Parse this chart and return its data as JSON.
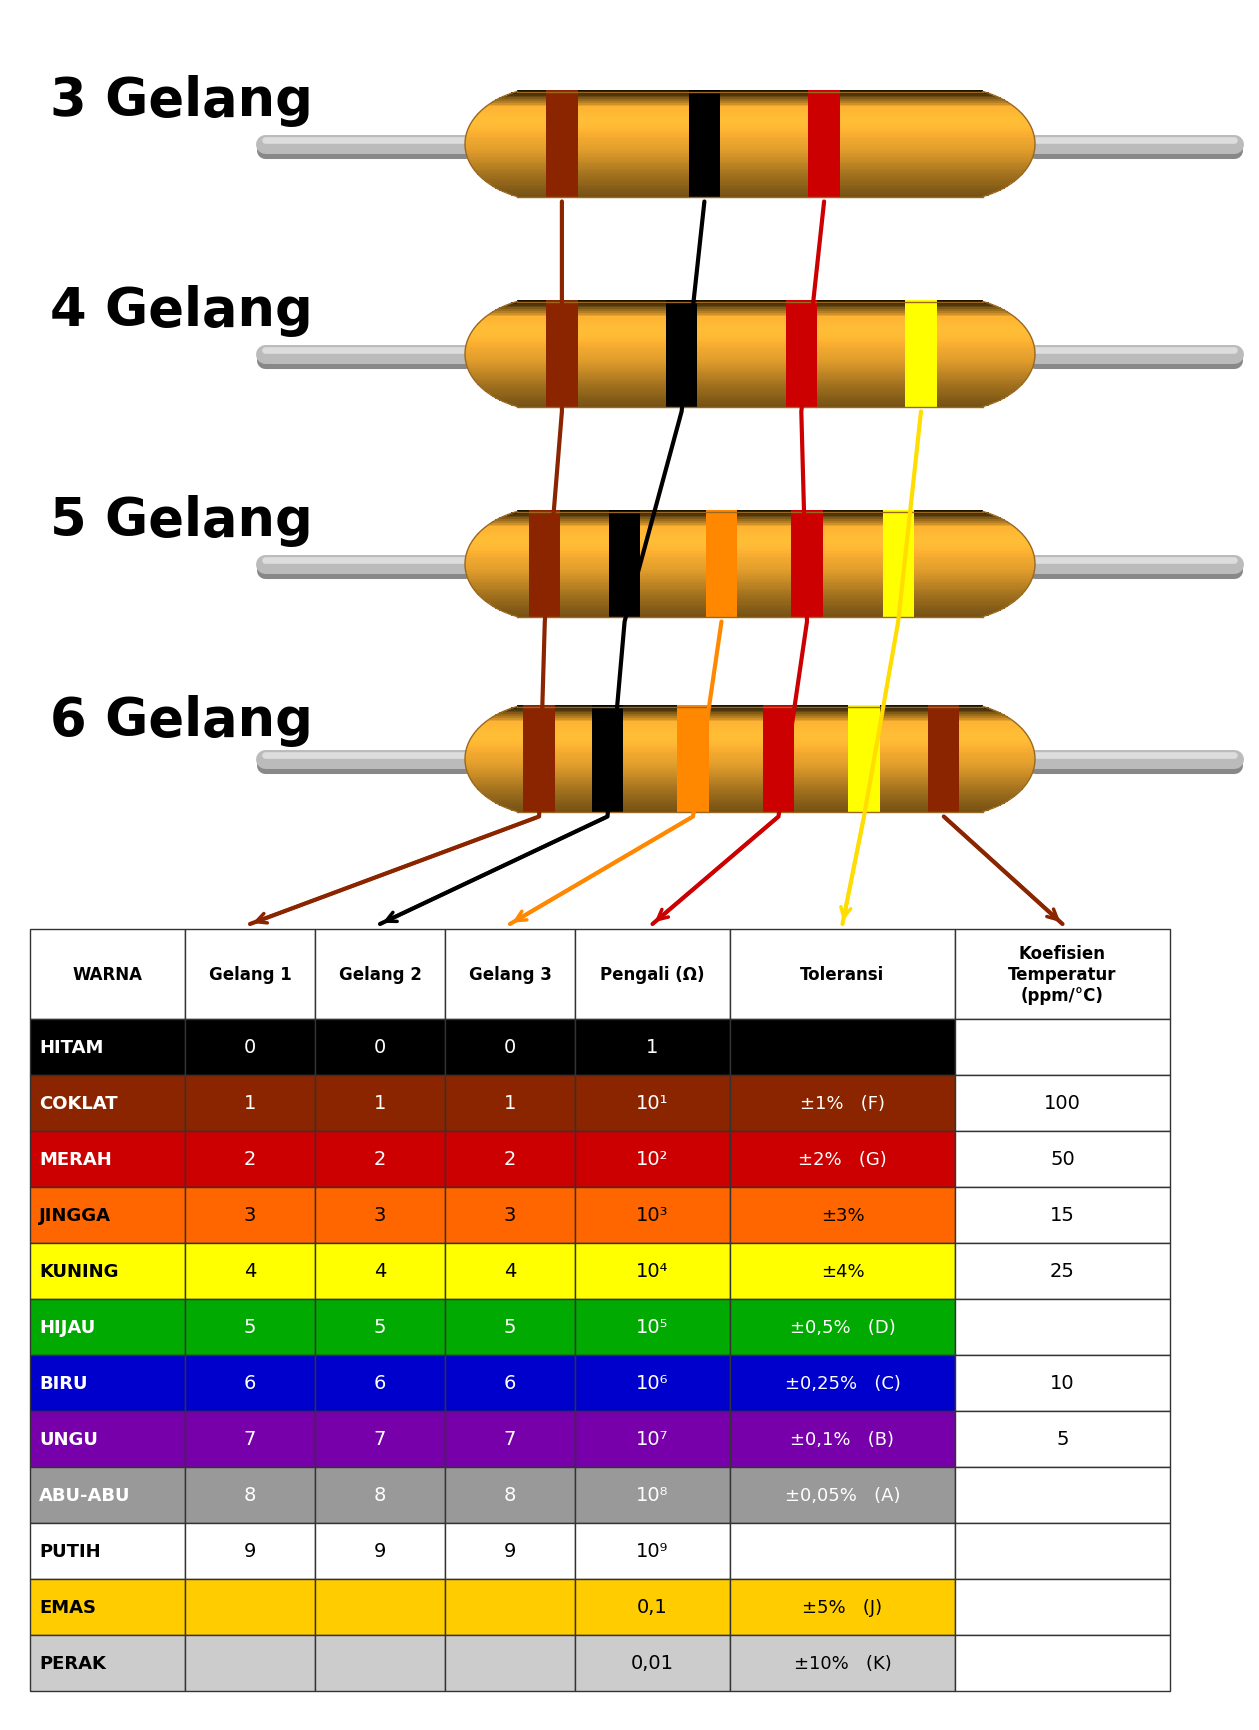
{
  "resistor_labels": [
    "3 Gelang",
    "4 Gelang",
    "5 Gelang",
    "6 Gelang"
  ],
  "table_rows": [
    {
      "name": "HITAM",
      "bg": "#000000",
      "fg": "#FFFFFF",
      "g1": "0",
      "g2": "0",
      "g3": "0",
      "mult": "1",
      "tol": "",
      "tolcode": "",
      "temp": ""
    },
    {
      "name": "COKLAT",
      "bg": "#8B2500",
      "fg": "#FFFFFF",
      "g1": "1",
      "g2": "1",
      "g3": "1",
      "mult": "10¹",
      "tol": "±1%",
      "tolcode": "(F)",
      "temp": "100"
    },
    {
      "name": "MERAH",
      "bg": "#CC0000",
      "fg": "#FFFFFF",
      "g1": "2",
      "g2": "2",
      "g3": "2",
      "mult": "10²",
      "tol": "±2%",
      "tolcode": "(G)",
      "temp": "50"
    },
    {
      "name": "JINGGA",
      "bg": "#FF6600",
      "fg": "#000000",
      "g1": "3",
      "g2": "3",
      "g3": "3",
      "mult": "10³",
      "tol": "±3%",
      "tolcode": "",
      "temp": "15"
    },
    {
      "name": "KUNING",
      "bg": "#FFFF00",
      "fg": "#000000",
      "g1": "4",
      "g2": "4",
      "g3": "4",
      "mult": "10⁴",
      "tol": "±4%",
      "tolcode": "",
      "temp": "25"
    },
    {
      "name": "HIJAU",
      "bg": "#00AA00",
      "fg": "#FFFFFF",
      "g1": "5",
      "g2": "5",
      "g3": "5",
      "mult": "10⁵",
      "tol": "±0,5%",
      "tolcode": "(D)",
      "temp": ""
    },
    {
      "name": "BIRU",
      "bg": "#0000CC",
      "fg": "#FFFFFF",
      "g1": "6",
      "g2": "6",
      "g3": "6",
      "mult": "10⁶",
      "tol": "±0,25%",
      "tolcode": "(C)",
      "temp": "10"
    },
    {
      "name": "UNGU",
      "bg": "#7700AA",
      "fg": "#FFFFFF",
      "g1": "7",
      "g2": "7",
      "g3": "7",
      "mult": "10⁷",
      "tol": "±0,1%",
      "tolcode": "(B)",
      "temp": "5"
    },
    {
      "name": "ABU-ABU",
      "bg": "#999999",
      "fg": "#FFFFFF",
      "g1": "8",
      "g2": "8",
      "g3": "8",
      "mult": "10⁸",
      "tol": "±0,05%",
      "tolcode": "(A)",
      "temp": ""
    },
    {
      "name": "PUTIH",
      "bg": "#FFFFFF",
      "fg": "#000000",
      "g1": "9",
      "g2": "9",
      "g3": "9",
      "mult": "10⁹",
      "tol": "",
      "tolcode": "",
      "temp": ""
    },
    {
      "name": "EMAS",
      "bg": "#FFCC00",
      "fg": "#000000",
      "g1": "",
      "g2": "",
      "g3": "",
      "mult": "0,1",
      "tol": "±5%",
      "tolcode": "(J)",
      "temp": ""
    },
    {
      "name": "PERAK",
      "bg": "#CCCCCC",
      "fg": "#000000",
      "g1": "",
      "g2": "",
      "g3": "",
      "mult": "0,01",
      "tol": "±10%",
      "tolcode": "(K)",
      "temp": ""
    }
  ],
  "header_cols": [
    "WARNA",
    "Gelang 1",
    "Gelang 2",
    "Gelang 3",
    "Pengali (Ω)",
    "Toleransi",
    "Koefisien\nTemperatur\n(ppm/°C)"
  ],
  "band_colors_3": [
    "#8B2500",
    "#000000",
    "#CC0000"
  ],
  "band_colors_4": [
    "#8B2500",
    "#000000",
    "#CC0000",
    "#FFFF00"
  ],
  "band_colors_5": [
    "#8B2500",
    "#000000",
    "#FF8800",
    "#CC0000",
    "#FFFF00"
  ],
  "band_colors_6": [
    "#8B2500",
    "#000000",
    "#FF8800",
    "#CC0000",
    "#FFFF00",
    "#8B2500"
  ],
  "arrow_colors": [
    "#8B2500",
    "#000000",
    "#FF8800",
    "#CC0000",
    "#FFFF00",
    "#8B2500"
  ],
  "bg_color": "#FFFFFF"
}
